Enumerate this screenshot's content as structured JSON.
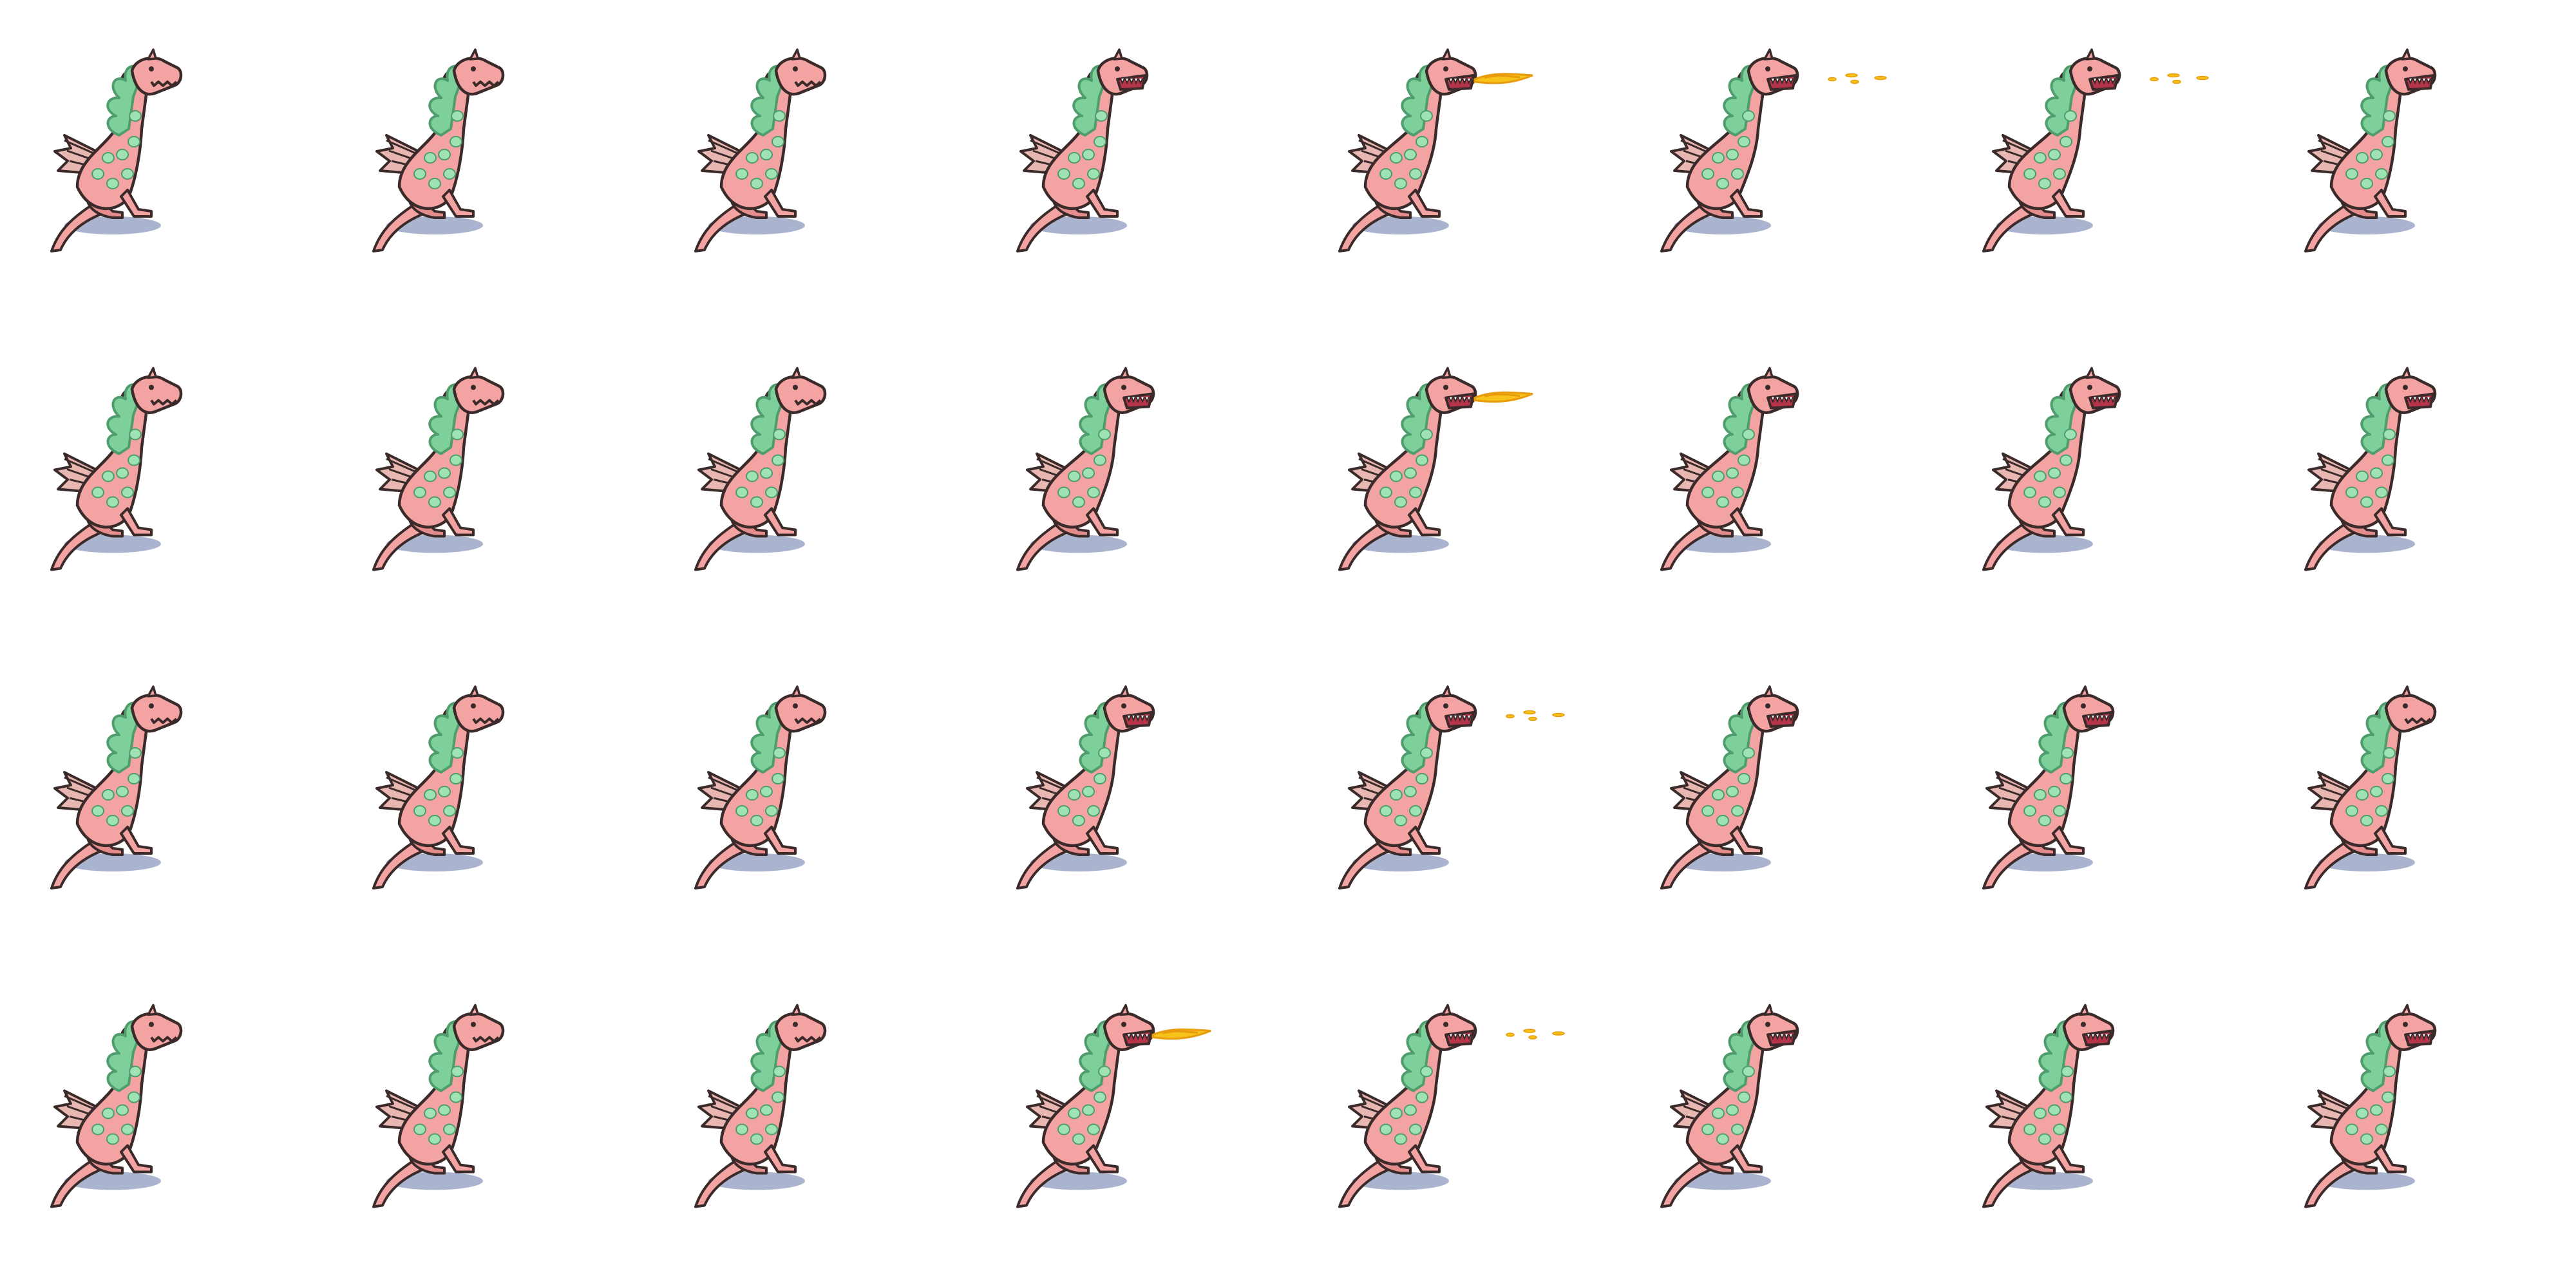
{
  "sprite_sheet": {
    "columns": 8,
    "rows": 4,
    "background": "#ffffff",
    "colors": {
      "body": "#f4a3a3",
      "body_shade": "#e58d8d",
      "outline": "#3a2a2a",
      "mane": "#7ed09b",
      "mane_dark": "#4f9c6c",
      "spots": "#9fe2b4",
      "wing": "#e9b7b2",
      "shadow": "#8f9bbd",
      "fire": "#f7c21a",
      "fire_dark": "#e89b0c",
      "teeth": "#ffffff",
      "mouth": "#b5344a"
    },
    "frames": [
      {
        "row": 0,
        "col": 0,
        "pose": "idle",
        "mouth": "closed",
        "fire": "none"
      },
      {
        "row": 0,
        "col": 1,
        "pose": "idle",
        "mouth": "closed",
        "fire": "none"
      },
      {
        "row": 0,
        "col": 2,
        "pose": "idle",
        "mouth": "closed",
        "fire": "none"
      },
      {
        "row": 0,
        "col": 3,
        "pose": "idle",
        "mouth": "open",
        "fire": "none"
      },
      {
        "row": 0,
        "col": 4,
        "pose": "breath",
        "mouth": "open",
        "fire": "stream"
      },
      {
        "row": 0,
        "col": 5,
        "pose": "breath",
        "mouth": "open",
        "fire": "sparks"
      },
      {
        "row": 0,
        "col": 6,
        "pose": "breath",
        "mouth": "open",
        "fire": "sparks"
      },
      {
        "row": 0,
        "col": 7,
        "pose": "idle",
        "mouth": "open",
        "fire": "none"
      },
      {
        "row": 1,
        "col": 0,
        "pose": "idle",
        "mouth": "closed",
        "fire": "none"
      },
      {
        "row": 1,
        "col": 1,
        "pose": "idle",
        "mouth": "closed",
        "fire": "none"
      },
      {
        "row": 1,
        "col": 2,
        "pose": "idle",
        "mouth": "closed",
        "fire": "none"
      },
      {
        "row": 1,
        "col": 3,
        "pose": "lean",
        "mouth": "open",
        "fire": "none"
      },
      {
        "row": 1,
        "col": 4,
        "pose": "breath",
        "mouth": "open",
        "fire": "stream"
      },
      {
        "row": 1,
        "col": 5,
        "pose": "breath",
        "mouth": "open",
        "fire": "none"
      },
      {
        "row": 1,
        "col": 6,
        "pose": "breath",
        "mouth": "open",
        "fire": "none"
      },
      {
        "row": 1,
        "col": 7,
        "pose": "idle",
        "mouth": "open",
        "fire": "none"
      },
      {
        "row": 2,
        "col": 0,
        "pose": "idle",
        "mouth": "closed",
        "fire": "none"
      },
      {
        "row": 2,
        "col": 1,
        "pose": "idle",
        "mouth": "closed",
        "fire": "none"
      },
      {
        "row": 2,
        "col": 2,
        "pose": "idle",
        "mouth": "closed",
        "fire": "none"
      },
      {
        "row": 2,
        "col": 3,
        "pose": "lean",
        "mouth": "open",
        "fire": "none"
      },
      {
        "row": 2,
        "col": 4,
        "pose": "breath",
        "mouth": "open",
        "fire": "sparks"
      },
      {
        "row": 2,
        "col": 5,
        "pose": "breath",
        "mouth": "open",
        "fire": "none"
      },
      {
        "row": 2,
        "col": 6,
        "pose": "idle",
        "mouth": "open",
        "fire": "none"
      },
      {
        "row": 2,
        "col": 7,
        "pose": "idle",
        "mouth": "closed",
        "fire": "none"
      },
      {
        "row": 3,
        "col": 0,
        "pose": "idle",
        "mouth": "closed",
        "fire": "none"
      },
      {
        "row": 3,
        "col": 1,
        "pose": "idle",
        "mouth": "closed",
        "fire": "none"
      },
      {
        "row": 3,
        "col": 2,
        "pose": "idle",
        "mouth": "closed",
        "fire": "none"
      },
      {
        "row": 3,
        "col": 3,
        "pose": "lean",
        "mouth": "open",
        "fire": "stream"
      },
      {
        "row": 3,
        "col": 4,
        "pose": "breath",
        "mouth": "open",
        "fire": "sparks"
      },
      {
        "row": 3,
        "col": 5,
        "pose": "breath",
        "mouth": "open",
        "fire": "none"
      },
      {
        "row": 3,
        "col": 6,
        "pose": "idle",
        "mouth": "open",
        "fire": "none"
      },
      {
        "row": 3,
        "col": 7,
        "pose": "idle",
        "mouth": "open",
        "fire": "none"
      }
    ]
  }
}
